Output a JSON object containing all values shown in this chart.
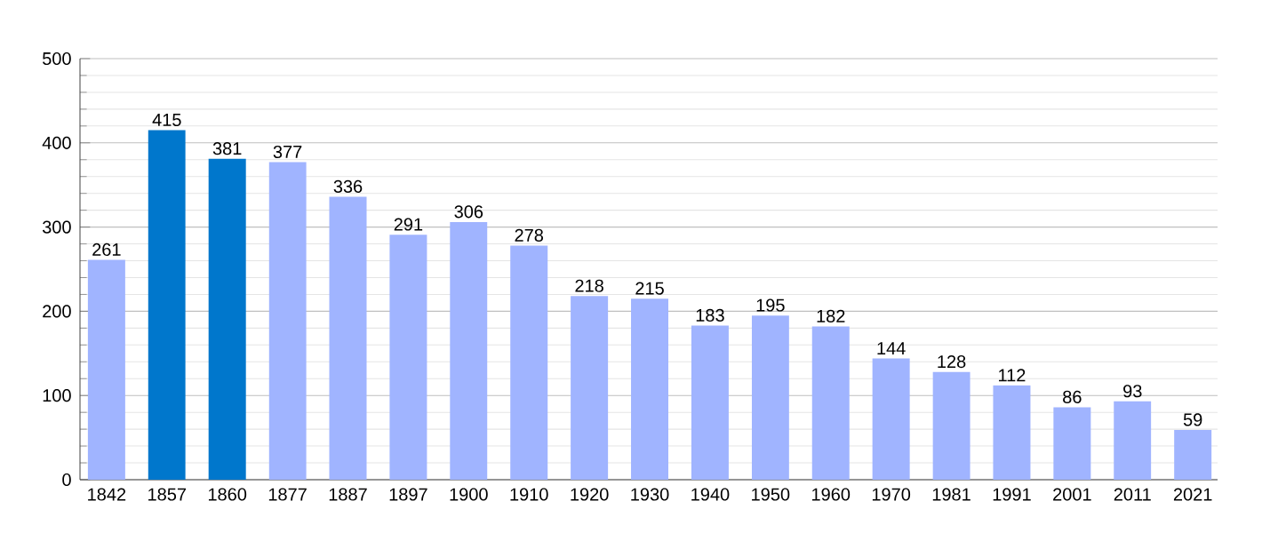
{
  "chart_data": {
    "type": "bar",
    "categories": [
      "1842",
      "1857",
      "1860",
      "1877",
      "1887",
      "1897",
      "1900",
      "1910",
      "1920",
      "1930",
      "1940",
      "1950",
      "1960",
      "1970",
      "1981",
      "1991",
      "2001",
      "2011",
      "2021"
    ],
    "values": [
      261,
      415,
      381,
      377,
      336,
      291,
      306,
      278,
      218,
      215,
      183,
      195,
      182,
      144,
      128,
      112,
      86,
      93,
      59
    ],
    "colors": [
      "#a0b4ff",
      "#0077cc",
      "#0077cc",
      "#a0b4ff",
      "#a0b4ff",
      "#a0b4ff",
      "#a0b4ff",
      "#a0b4ff",
      "#a0b4ff",
      "#a0b4ff",
      "#a0b4ff",
      "#a0b4ff",
      "#a0b4ff",
      "#a0b4ff",
      "#a0b4ff",
      "#a0b4ff",
      "#a0b4ff",
      "#a0b4ff",
      "#a0b4ff"
    ],
    "ylim": [
      0,
      500
    ],
    "yticks": [
      0,
      100,
      200,
      300,
      400,
      500
    ],
    "grid": "y",
    "data_labels": true
  }
}
